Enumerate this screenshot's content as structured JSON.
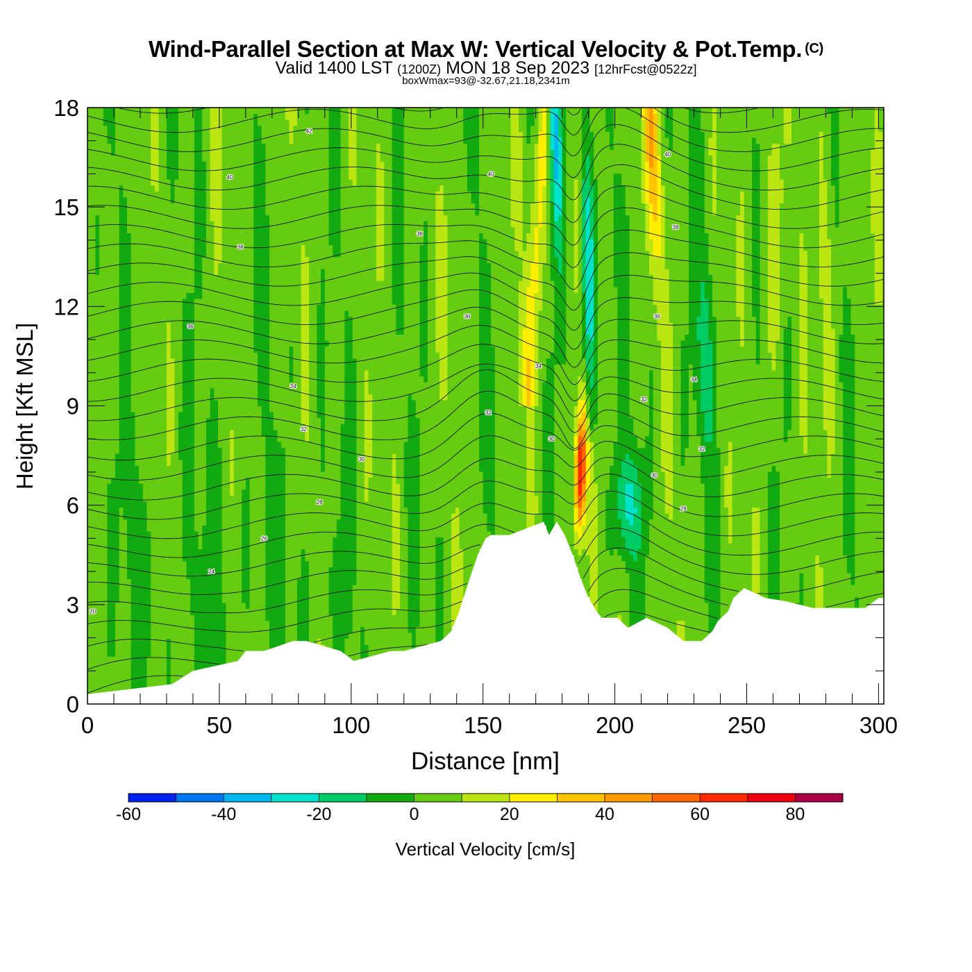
{
  "header": {
    "title": "Wind-Parallel Section at Max W: Vertical Velocity & Pot.Temp.",
    "copyright": "(C)",
    "valid_prefix": "Valid 1400 LST",
    "valid_utc": "(1200Z)",
    "valid_date": "MON 18 Sep 2023",
    "forecast": "[12hrFcst@0522z]",
    "boxwmax": "boxWmax=93@-32.67,21.18,2341m"
  },
  "chart_data": {
    "type": "heatmap",
    "title": "Wind-Parallel Section at Max W: Vertical Velocity & Pot.Temp.",
    "xlabel": "Distance [nm]",
    "ylabel": "Height [Kft MSL]",
    "xlim": [
      0,
      302
    ],
    "ylim": [
      0,
      18
    ],
    "x_ticks": [
      0,
      50,
      100,
      150,
      200,
      250,
      300
    ],
    "y_ticks": [
      0,
      3,
      6,
      9,
      12,
      15,
      18
    ],
    "colorbar": {
      "label": "Vertical Velocity [cm/s]",
      "bounds": [
        -60,
        -50,
        -40,
        -30,
        -20,
        -10,
        0,
        10,
        20,
        30,
        40,
        50,
        60,
        70,
        80,
        90
      ],
      "tick_labels": [
        "-60",
        "-40",
        "-20",
        "0",
        "20",
        "40",
        "60",
        "80"
      ],
      "tick_values": [
        -60,
        -40,
        -20,
        0,
        20,
        40,
        60,
        80
      ],
      "colors": [
        "#0022ee",
        "#0077ee",
        "#00b8ee",
        "#00e2cc",
        "#00cc66",
        "#11aa11",
        "#66cc11",
        "#bbe611",
        "#ffee00",
        "#ffc400",
        "#ff9900",
        "#ff6600",
        "#ff2a00",
        "#ee0011",
        "#aa0044"
      ]
    },
    "terrain_kft": {
      "x": [
        0,
        32,
        40,
        57,
        60,
        67,
        78,
        83,
        96,
        101,
        115,
        120,
        134,
        138,
        141,
        145,
        148,
        151,
        153,
        160,
        173,
        175,
        178,
        181,
        184,
        187,
        190,
        193,
        195,
        197,
        201,
        205,
        212,
        220,
        226,
        233,
        237,
        239,
        243,
        245,
        249,
        257,
        265,
        275,
        295,
        300,
        302
      ],
      "height": [
        0.3,
        0.6,
        1.0,
        1.3,
        1.6,
        1.6,
        1.9,
        1.9,
        1.6,
        1.3,
        1.6,
        1.6,
        1.9,
        2.2,
        2.8,
        3.8,
        4.5,
        5.0,
        5.1,
        5.1,
        5.5,
        5.1,
        5.5,
        5.1,
        4.5,
        3.8,
        3.2,
        2.8,
        2.6,
        2.6,
        2.6,
        2.3,
        2.6,
        2.3,
        1.9,
        1.9,
        2.2,
        2.5,
        2.8,
        3.2,
        3.5,
        3.2,
        3.1,
        2.9,
        2.9,
        3.2,
        3.2
      ]
    },
    "w_features": [
      {
        "label": "updraft core",
        "x": 187,
        "z": 7.0,
        "w": 75
      },
      {
        "label": "downdraft",
        "x": 177,
        "z": 17.5,
        "w": -45
      },
      {
        "label": "downdraft",
        "x": 190,
        "z": 13.5,
        "w": -35
      },
      {
        "label": "updraft",
        "x": 213,
        "z": 17.5,
        "w": 35
      },
      {
        "label": "updraft",
        "x": 168,
        "z": 17.0,
        "w": 25
      },
      {
        "label": "downdraft",
        "x": 204,
        "z": 6.0,
        "w": -25
      },
      {
        "label": "downdraft",
        "x": 236,
        "z": 11.0,
        "w": -20
      }
    ],
    "theta_contour_labels": [
      {
        "text": "42",
        "x": 84,
        "z": 17.3
      },
      {
        "text": "40",
        "x": 54,
        "z": 15.9
      },
      {
        "text": "40",
        "x": 153,
        "z": 16.0
      },
      {
        "text": "40",
        "x": 220,
        "z": 16.6
      },
      {
        "text": "38",
        "x": 58,
        "z": 13.8
      },
      {
        "text": "38",
        "x": 126,
        "z": 14.2
      },
      {
        "text": "38",
        "x": 223,
        "z": 14.4
      },
      {
        "text": "36",
        "x": 39,
        "z": 11.4
      },
      {
        "text": "36",
        "x": 144,
        "z": 11.7
      },
      {
        "text": "36",
        "x": 216,
        "z": 11.7
      },
      {
        "text": "34",
        "x": 78,
        "z": 9.6
      },
      {
        "text": "34",
        "x": 171,
        "z": 10.2
      },
      {
        "text": "34",
        "x": 230,
        "z": 9.8
      },
      {
        "text": "32",
        "x": 82,
        "z": 8.3
      },
      {
        "text": "32",
        "x": 152,
        "z": 8.8
      },
      {
        "text": "32",
        "x": 211,
        "z": 9.2
      },
      {
        "text": "32",
        "x": 233,
        "z": 7.7
      },
      {
        "text": "30",
        "x": 104,
        "z": 7.4
      },
      {
        "text": "30",
        "x": 176,
        "z": 8.0
      },
      {
        "text": "30",
        "x": 215,
        "z": 6.9
      },
      {
        "text": "28",
        "x": 88,
        "z": 6.1
      },
      {
        "text": "28",
        "x": 226,
        "z": 5.9
      },
      {
        "text": "26",
        "x": 67,
        "z": 5.0
      },
      {
        "text": "24",
        "x": 47,
        "z": 4.0
      },
      {
        "text": "20",
        "x": 2,
        "z": 2.8
      }
    ]
  }
}
